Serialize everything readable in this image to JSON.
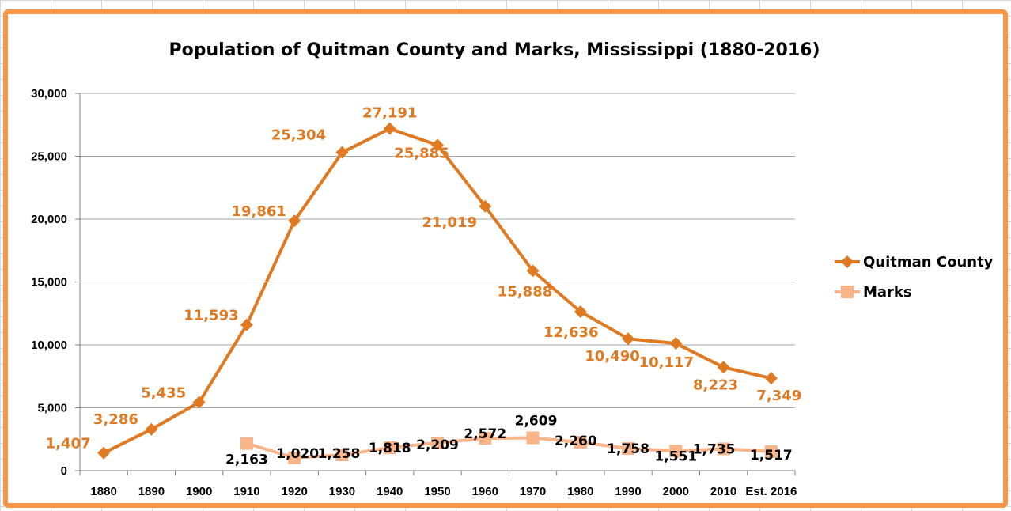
{
  "chart_data": {
    "type": "line",
    "title": "Population of Quitman County and Marks, Mississippi (1880-2016)",
    "xlabel": "",
    "ylabel": "",
    "categories": [
      "1880",
      "1890",
      "1900",
      "1910",
      "1920",
      "1930",
      "1940",
      "1950",
      "1960",
      "1970",
      "1980",
      "1990",
      "2000",
      "2010",
      "Est. 2016"
    ],
    "ylim": [
      0,
      30000
    ],
    "yticks": [
      0,
      5000,
      10000,
      15000,
      20000,
      25000,
      30000
    ],
    "ytick_labels": [
      "0",
      "5,000",
      "10,000",
      "15,000",
      "20,000",
      "25,000",
      "30,000"
    ],
    "grid": true,
    "legend_position": "right",
    "series": [
      {
        "name": "Quitman County",
        "color": "#e07a22",
        "marker": "diamond",
        "values": [
          1407,
          3286,
          5435,
          11593,
          19861,
          25304,
          27191,
          25885,
          21019,
          15888,
          12636,
          10490,
          10117,
          8223,
          7349
        ],
        "labels": [
          "1,407",
          "3,286",
          "5,435",
          "11,593",
          "19,861",
          "25,304",
          "27,191",
          "25,885",
          "21,019",
          "15,888",
          "12,636",
          "10,490",
          "10,117",
          "8,223",
          "7,349"
        ]
      },
      {
        "name": "Marks",
        "color": "#f9b48a",
        "marker": "square",
        "values": [
          null,
          null,
          null,
          2163,
          1020,
          1258,
          1818,
          2209,
          2572,
          2609,
          2260,
          1758,
          1551,
          1735,
          1517
        ],
        "labels": [
          "",
          "",
          "",
          "2,163",
          "1,020",
          "1,258",
          "1,818",
          "2,209",
          "2,572",
          "2,609",
          "2,260",
          "1,758",
          "1,551",
          "1,735",
          "1,517"
        ]
      }
    ]
  }
}
